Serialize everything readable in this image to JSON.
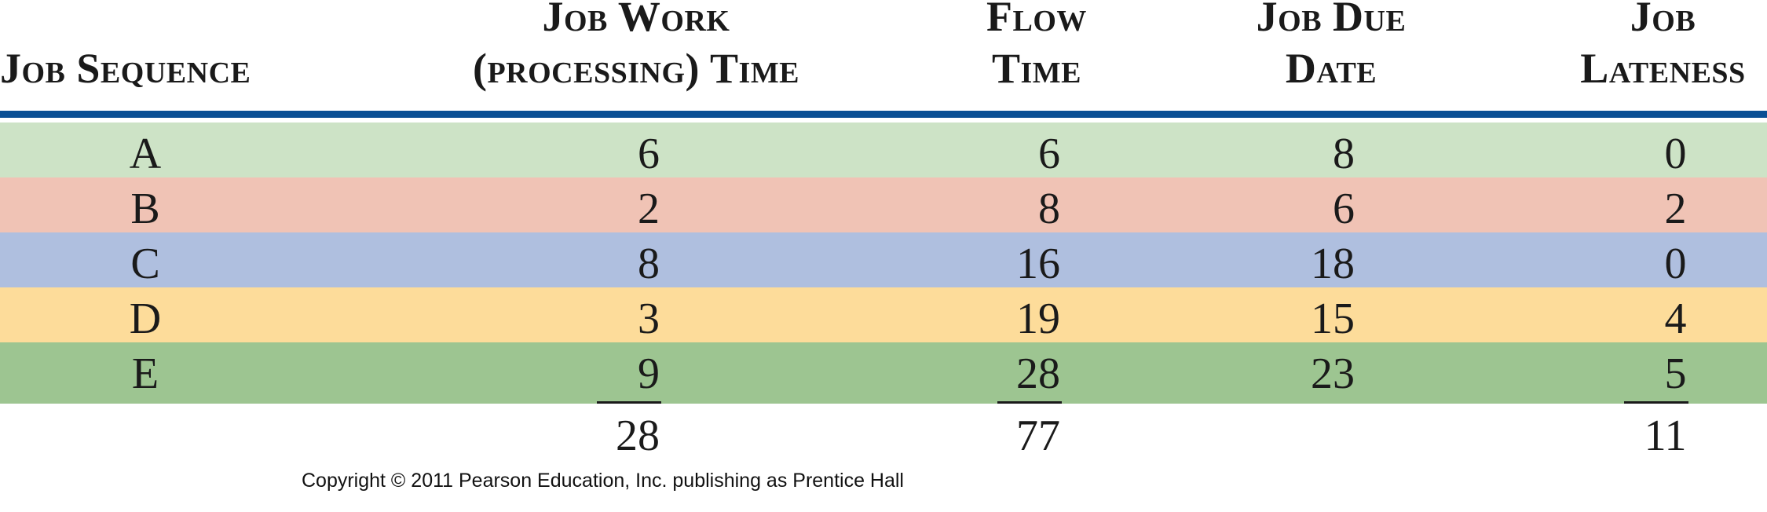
{
  "headers": {
    "sequence": [
      "Job Sequence"
    ],
    "work": [
      "Job Work",
      "(processing) Time"
    ],
    "flow": [
      "Flow",
      "Time"
    ],
    "due": [
      "Job Due",
      "Date"
    ],
    "lateness": [
      "Job",
      "Lateness"
    ]
  },
  "colors": {
    "rule": "#0a4f94",
    "row_a": "#cde3c6",
    "row_b": "#f0c3b5",
    "row_c": "#afbfdf",
    "row_d": "#fddc9a",
    "row_e": "#9dc591"
  },
  "rows": [
    {
      "job": "A",
      "work": "6",
      "flow": "6",
      "due": "8",
      "lateness": "0"
    },
    {
      "job": "B",
      "work": "2",
      "flow": "8",
      "due": "6",
      "lateness": "2"
    },
    {
      "job": "C",
      "work": "8",
      "flow": "16",
      "due": "18",
      "lateness": "0"
    },
    {
      "job": "D",
      "work": "3",
      "flow": "19",
      "due": "15",
      "lateness": "4"
    },
    {
      "job": "E",
      "work": "9",
      "flow": "28",
      "due": "23",
      "lateness": "5"
    }
  ],
  "totals": {
    "work": "28",
    "flow": "77",
    "lateness": "11"
  },
  "copyright": "Copyright © 2011 Pearson Education, Inc. publishing as Prentice Hall"
}
